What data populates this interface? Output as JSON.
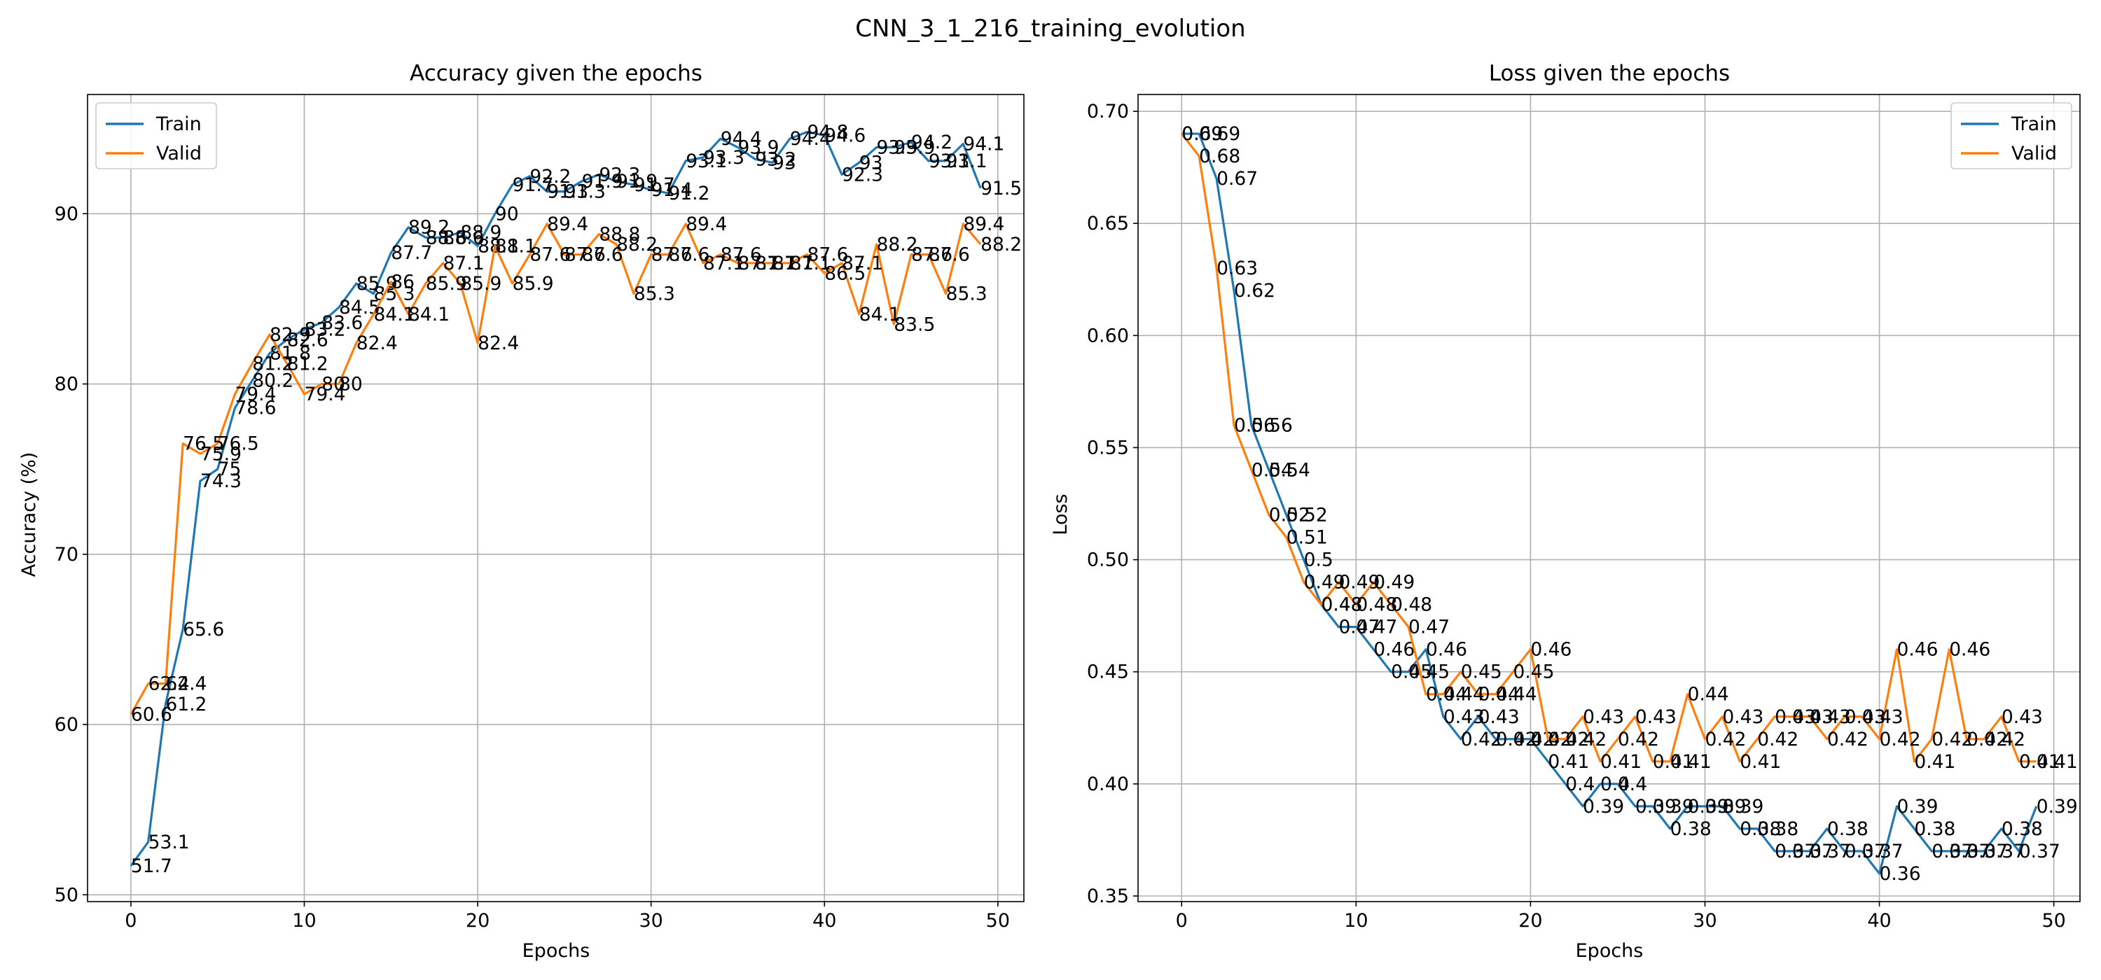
{
  "title": "CNN_3_1_216_training_evolution",
  "colors": {
    "train": "#1f77b4",
    "valid": "#ff7f0e",
    "grid": "#b0b0b0"
  },
  "chart_data": [
    {
      "type": "line",
      "title": "Accuracy given the epochs",
      "xlabel": "Epochs",
      "ylabel": "Accuracy (%)",
      "xlim": [
        -2.5,
        51.5
      ],
      "ylim": [
        49.6,
        97.0
      ],
      "xticks": [
        0,
        10,
        20,
        30,
        40,
        50
      ],
      "yticks": [
        50,
        60,
        70,
        80,
        90
      ],
      "grid": true,
      "legend": "upper left",
      "label_decimals": 1,
      "x": [
        0,
        1,
        2,
        3,
        4,
        5,
        6,
        7,
        8,
        9,
        10,
        11,
        12,
        13,
        14,
        15,
        16,
        17,
        18,
        19,
        20,
        21,
        22,
        23,
        24,
        25,
        26,
        27,
        28,
        29,
        30,
        31,
        32,
        33,
        34,
        35,
        36,
        37,
        38,
        39,
        40,
        41,
        42,
        43,
        44,
        45,
        46,
        47,
        48,
        49
      ],
      "series": [
        {
          "name": "Train",
          "color": "#1f77b4",
          "values": [
            51.7,
            53.1,
            61.2,
            65.6,
            74.3,
            75.0,
            78.6,
            80.2,
            81.8,
            82.6,
            83.2,
            83.6,
            84.5,
            85.9,
            85.3,
            87.7,
            89.2,
            88.6,
            88.6,
            88.9,
            88.1,
            90.0,
            91.7,
            92.2,
            91.3,
            91.3,
            91.9,
            92.3,
            91.9,
            91.7,
            91.4,
            91.2,
            93.1,
            93.3,
            94.4,
            93.9,
            93.2,
            93.0,
            94.4,
            94.8,
            94.6,
            92.3,
            93.0,
            93.9,
            93.9,
            94.2,
            93.1,
            93.1,
            94.1,
            91.5
          ]
        },
        {
          "name": "Valid",
          "color": "#ff7f0e",
          "values": [
            60.6,
            62.4,
            62.4,
            76.5,
            75.9,
            76.5,
            79.4,
            81.2,
            82.9,
            81.2,
            79.4,
            80.0,
            80.0,
            82.4,
            84.1,
            86.0,
            84.1,
            85.9,
            87.1,
            85.9,
            82.4,
            88.1,
            85.9,
            87.6,
            89.4,
            87.6,
            87.6,
            88.8,
            88.2,
            85.3,
            87.6,
            87.6,
            89.4,
            87.1,
            87.6,
            87.1,
            87.1,
            87.1,
            87.1,
            87.6,
            86.5,
            87.1,
            84.1,
            88.2,
            83.5,
            87.6,
            87.6,
            85.3,
            89.4,
            88.2
          ]
        }
      ]
    },
    {
      "type": "line",
      "title": "Loss given the epochs",
      "xlabel": "Epochs",
      "ylabel": "Loss",
      "xlim": [
        -2.5,
        51.5
      ],
      "ylim": [
        0.3475,
        0.7075
      ],
      "xticks": [
        0,
        10,
        20,
        30,
        40,
        50
      ],
      "yticks": [
        0.35,
        0.4,
        0.45,
        0.5,
        0.55,
        0.6,
        0.65,
        0.7
      ],
      "ytick_labels": [
        "0.35",
        "0.40",
        "0.45",
        "0.50",
        "0.55",
        "0.60",
        "0.65",
        "0.70"
      ],
      "grid": true,
      "legend": "upper right",
      "label_decimals": 2,
      "x": [
        0,
        1,
        2,
        3,
        4,
        5,
        6,
        7,
        8,
        9,
        10,
        11,
        12,
        13,
        14,
        15,
        16,
        17,
        18,
        19,
        20,
        21,
        22,
        23,
        24,
        25,
        26,
        27,
        28,
        29,
        30,
        31,
        32,
        33,
        34,
        35,
        36,
        37,
        38,
        39,
        40,
        41,
        42,
        43,
        44,
        45,
        46,
        47,
        48,
        49
      ],
      "series": [
        {
          "name": "Train",
          "color": "#1f77b4",
          "values": [
            0.69,
            0.69,
            0.67,
            0.62,
            0.56,
            0.54,
            0.52,
            0.5,
            0.48,
            0.47,
            0.47,
            0.46,
            0.45,
            0.45,
            0.46,
            0.43,
            0.42,
            0.43,
            0.42,
            0.42,
            0.42,
            0.41,
            0.4,
            0.39,
            0.4,
            0.4,
            0.39,
            0.39,
            0.38,
            0.39,
            0.39,
            0.39,
            0.38,
            0.38,
            0.37,
            0.37,
            0.37,
            0.38,
            0.37,
            0.37,
            0.36,
            0.39,
            0.38,
            0.37,
            0.37,
            0.37,
            0.37,
            0.38,
            0.37,
            0.39
          ]
        },
        {
          "name": "Valid",
          "color": "#ff7f0e",
          "values": [
            0.69,
            0.68,
            0.63,
            0.56,
            0.54,
            0.52,
            0.51,
            0.49,
            0.48,
            0.49,
            0.48,
            0.49,
            0.48,
            0.47,
            0.44,
            0.44,
            0.45,
            0.44,
            0.44,
            0.45,
            0.46,
            0.42,
            0.42,
            0.43,
            0.41,
            0.42,
            0.43,
            0.41,
            0.41,
            0.44,
            0.42,
            0.43,
            0.41,
            0.42,
            0.43,
            0.43,
            0.43,
            0.42,
            0.43,
            0.43,
            0.42,
            0.46,
            0.41,
            0.42,
            0.46,
            0.42,
            0.42,
            0.43,
            0.41,
            0.41
          ]
        }
      ]
    }
  ]
}
